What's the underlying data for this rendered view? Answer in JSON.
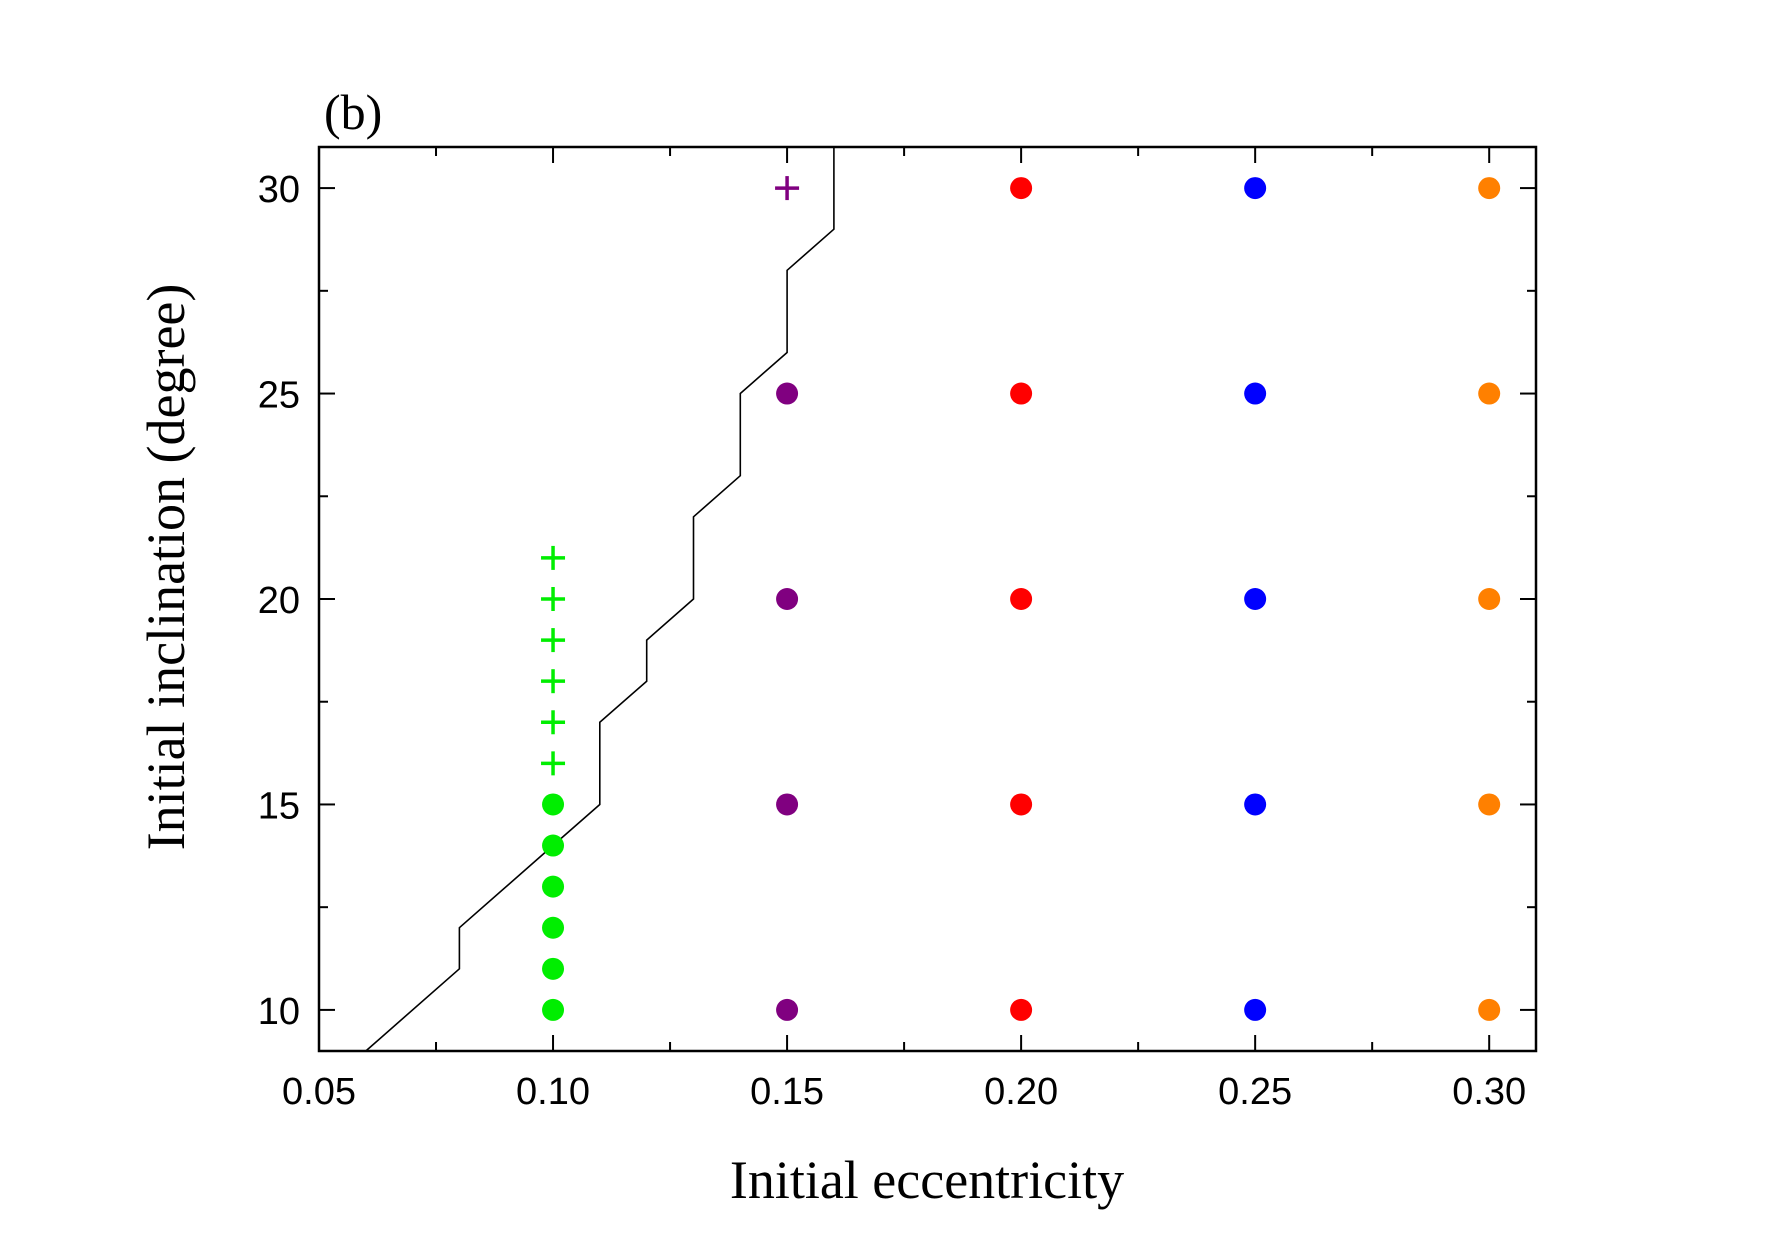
{
  "chart_data": {
    "type": "scatter",
    "panel_label": "(b)",
    "xlabel": "Initial eccentricity",
    "ylabel": "Initial inclination (degree)",
    "xlim": [
      0.05,
      0.31
    ],
    "ylim": [
      9,
      31
    ],
    "x_major_ticks": [
      0.05,
      0.1,
      0.15,
      0.2,
      0.25,
      0.3
    ],
    "x_tick_labels": [
      "0.05",
      "0.10",
      "0.15",
      "0.20",
      "0.25",
      "0.30"
    ],
    "x_minor_ticks": [
      0.075,
      0.125,
      0.175,
      0.225,
      0.275
    ],
    "y_major_ticks": [
      10,
      15,
      20,
      25,
      30
    ],
    "y_tick_labels": [
      "10",
      "15",
      "20",
      "25",
      "30"
    ],
    "y_minor_ticks": [
      12.5,
      17.5,
      22.5,
      27.5
    ],
    "grid": false,
    "series": [
      {
        "name": "e=0.10 circles",
        "marker": "circle",
        "color": "#00ee00",
        "x": [
          0.1,
          0.1,
          0.1,
          0.1,
          0.1,
          0.1
        ],
        "y": [
          10,
          11,
          12,
          13,
          14,
          15
        ]
      },
      {
        "name": "e=0.10 plus",
        "marker": "plus",
        "color": "#00ee00",
        "x": [
          0.1,
          0.1,
          0.1,
          0.1,
          0.1,
          0.1
        ],
        "y": [
          16,
          17,
          18,
          19,
          20,
          21
        ]
      },
      {
        "name": "e=0.15 circles",
        "marker": "circle",
        "color": "#800080",
        "x": [
          0.15,
          0.15,
          0.15,
          0.15
        ],
        "y": [
          10,
          15,
          20,
          25
        ]
      },
      {
        "name": "e=0.15 plus",
        "marker": "plus",
        "color": "#800080",
        "x": [
          0.15
        ],
        "y": [
          30
        ]
      },
      {
        "name": "e=0.20 circles",
        "marker": "circle",
        "color": "#ff0000",
        "x": [
          0.2,
          0.2,
          0.2,
          0.2,
          0.2
        ],
        "y": [
          10,
          15,
          20,
          25,
          30
        ]
      },
      {
        "name": "e=0.25 circles",
        "marker": "circle",
        "color": "#0000ff",
        "x": [
          0.25,
          0.25,
          0.25,
          0.25,
          0.25
        ],
        "y": [
          10,
          15,
          20,
          25,
          30
        ]
      },
      {
        "name": "e=0.30 circles",
        "marker": "circle",
        "color": "#ff8000",
        "x": [
          0.3,
          0.3,
          0.3,
          0.3,
          0.3
        ],
        "y": [
          10,
          15,
          20,
          25,
          30
        ]
      }
    ],
    "boundary_line": {
      "name": "boundary",
      "color": "#000000",
      "points": [
        [
          0.06,
          9
        ],
        [
          0.08,
          11
        ],
        [
          0.08,
          12
        ],
        [
          0.1,
          14
        ],
        [
          0.11,
          15
        ],
        [
          0.11,
          16
        ],
        [
          0.11,
          17
        ],
        [
          0.12,
          18
        ],
        [
          0.12,
          19
        ],
        [
          0.13,
          20
        ],
        [
          0.13,
          22
        ],
        [
          0.14,
          23
        ],
        [
          0.14,
          25
        ],
        [
          0.15,
          26
        ],
        [
          0.15,
          28
        ],
        [
          0.16,
          29
        ],
        [
          0.16,
          31
        ]
      ]
    }
  }
}
